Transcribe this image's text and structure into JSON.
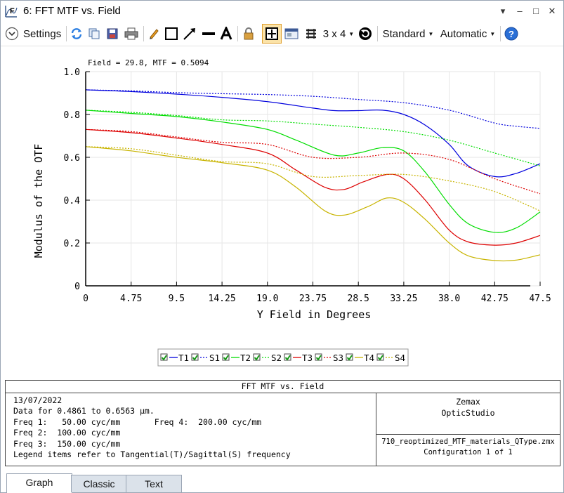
{
  "window": {
    "title": "6: FFT MTF vs. Field",
    "minimize_glyph": "–",
    "restore_glyph": "□",
    "close_glyph": "✕",
    "pin_glyph": "▾"
  },
  "toolbar": {
    "settings_label": "Settings",
    "layout_label": "3 x 4",
    "standard_label": "Standard",
    "automatic_label": "Automatic",
    "icons": [
      "chevron-down-circle-icon",
      "refresh-icon",
      "copy-icon",
      "save-icon",
      "print-icon",
      "pencil-icon",
      "rectangle-icon",
      "arrow-line-icon",
      "line-icon",
      "text-A-icon",
      "lock-icon",
      "crosshair-icon",
      "window-icon",
      "layers-icon",
      "rotate-icon",
      "help-icon"
    ]
  },
  "chart_data": {
    "type": "line",
    "annotation": "Field = 29.8, MTF = 0.5094",
    "xlabel": "Y Field in Degrees",
    "ylabel": "Modulus of the OTF",
    "xlim": [
      0,
      47.5
    ],
    "ylim": [
      0,
      1.0
    ],
    "x_ticks": [
      "0",
      "4.75",
      "9.5",
      "14.25",
      "19.0",
      "23.75",
      "28.5",
      "33.25",
      "38.0",
      "42.75",
      "47.5"
    ],
    "y_ticks": [
      "0",
      "0.2",
      "0.4",
      "0.6",
      "0.8",
      "1.0"
    ],
    "legend_placement": "bottom-center",
    "series": [
      {
        "name": "T1",
        "color": "#0000dd",
        "dash": "solid",
        "x": [
          0,
          4.75,
          9.5,
          14.25,
          19,
          23.75,
          26,
          28.5,
          31,
          33.25,
          35.5,
          38,
          40,
          42.75,
          45,
          47.5
        ],
        "y": [
          0.915,
          0.907,
          0.895,
          0.88,
          0.86,
          0.83,
          0.818,
          0.818,
          0.82,
          0.8,
          0.75,
          0.66,
          0.56,
          0.51,
          0.525,
          0.57
        ]
      },
      {
        "name": "S1",
        "color": "#0000dd",
        "dash": "dotted",
        "x": [
          0,
          4.75,
          9.5,
          14.25,
          19,
          23.75,
          28.5,
          33.25,
          38,
          42.75,
          45,
          47.5
        ],
        "y": [
          0.915,
          0.91,
          0.902,
          0.897,
          0.893,
          0.885,
          0.87,
          0.855,
          0.82,
          0.76,
          0.745,
          0.735
        ]
      },
      {
        "name": "T2",
        "color": "#00dd00",
        "dash": "solid",
        "x": [
          0,
          4.75,
          9.5,
          14.25,
          19,
          22,
          26,
          28.5,
          31,
          33.25,
          35.5,
          38,
          40,
          42.75,
          45,
          47.5
        ],
        "y": [
          0.82,
          0.805,
          0.79,
          0.765,
          0.73,
          0.68,
          0.61,
          0.62,
          0.645,
          0.63,
          0.53,
          0.38,
          0.29,
          0.25,
          0.27,
          0.345
        ]
      },
      {
        "name": "S2",
        "color": "#00dd00",
        "dash": "dotted",
        "x": [
          0,
          4.75,
          9.5,
          14.25,
          19,
          23.75,
          28.5,
          33.25,
          38,
          42.75,
          47.5
        ],
        "y": [
          0.82,
          0.81,
          0.795,
          0.775,
          0.77,
          0.755,
          0.74,
          0.72,
          0.68,
          0.62,
          0.56
        ]
      },
      {
        "name": "T3",
        "color": "#dd0000",
        "dash": "solid",
        "x": [
          0,
          4.75,
          9.5,
          14.25,
          19,
          22,
          25,
          27,
          29,
          31.5,
          33.25,
          35.5,
          38,
          40,
          42.75,
          45,
          47.5
        ],
        "y": [
          0.73,
          0.715,
          0.69,
          0.66,
          0.62,
          0.54,
          0.46,
          0.45,
          0.485,
          0.52,
          0.5,
          0.4,
          0.26,
          0.205,
          0.19,
          0.2,
          0.235
        ]
      },
      {
        "name": "S3",
        "color": "#dd0000",
        "dash": "dotted",
        "x": [
          0,
          4.75,
          9.5,
          14.25,
          19,
          23.75,
          28.5,
          33.25,
          38,
          42.75,
          47.5
        ],
        "y": [
          0.73,
          0.72,
          0.695,
          0.67,
          0.66,
          0.6,
          0.6,
          0.62,
          0.59,
          0.5,
          0.43
        ]
      },
      {
        "name": "T4",
        "color": "#c8b400",
        "dash": "solid",
        "x": [
          0,
          4.75,
          9.5,
          14.25,
          19,
          22,
          25,
          27,
          29.5,
          31.5,
          33.25,
          35.5,
          38,
          40,
          42.75,
          45,
          47.5
        ],
        "y": [
          0.65,
          0.63,
          0.6,
          0.575,
          0.54,
          0.46,
          0.35,
          0.33,
          0.37,
          0.41,
          0.39,
          0.31,
          0.2,
          0.14,
          0.118,
          0.12,
          0.145
        ]
      },
      {
        "name": "S4",
        "color": "#c8b400",
        "dash": "dotted",
        "x": [
          0,
          4.75,
          9.5,
          14.25,
          19,
          23.75,
          28.5,
          33.25,
          38,
          42.75,
          47.5
        ],
        "y": [
          0.65,
          0.64,
          0.61,
          0.58,
          0.57,
          0.51,
          0.515,
          0.52,
          0.49,
          0.44,
          0.35
        ]
      }
    ]
  },
  "info": {
    "title": "FFT MTF vs. Field",
    "date": "13/07/2022",
    "line1": "Data for 0.4861 to 0.6563 µm.",
    "line2": "Freq 1:   50.00 cyc/mm       Freq 4:  200.00 cyc/mm",
    "line3": "Freq 2:  100.00 cyc/mm",
    "line4": "Freq 3:  150.00 cyc/mm",
    "line5": "Legend items refer to Tangential(T)/Sagittal(S) frequency",
    "company": "Zemax",
    "product": "OpticStudio",
    "file": "710_reoptimized_MTF_materials_QType.zmx",
    "config": "Configuration 1 of 1"
  },
  "tabs": [
    {
      "label": "Graph",
      "active": true
    },
    {
      "label": "Classic",
      "active": false
    },
    {
      "label": "Text",
      "active": false
    }
  ]
}
